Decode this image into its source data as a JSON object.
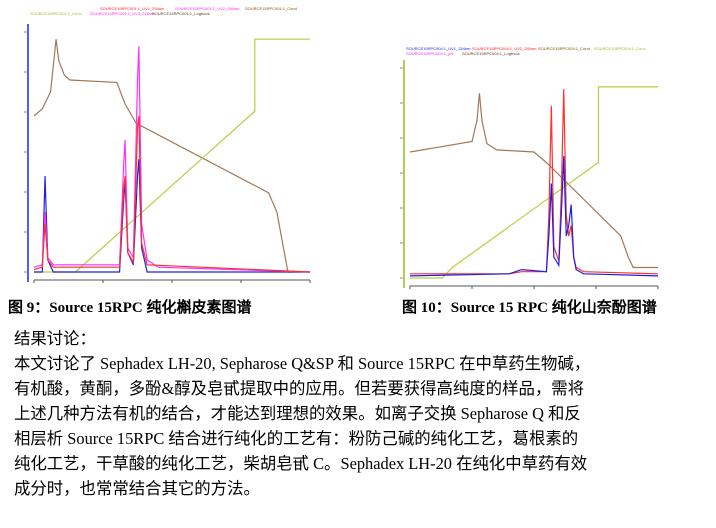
{
  "figure9": {
    "caption": "图 9：Source 15RPC 纯化槲皮素图谱",
    "legend": [
      "SOURCE15RPC001:1_UV1_254nm",
      "SOURCE15RPC001:1_UV2_280nm",
      "SOURCE15RPC001:1_UV3_215nm",
      "SOURCE15RPC001:1_Cond",
      "SOURCE15RPC001:1_Conc",
      "SOURCE15RPC001:1_pH",
      "SOURCE15RPC001:1_Logbook"
    ],
    "chart_data": {
      "type": "line",
      "xlim": [
        0,
        100
      ],
      "ylim": [
        0,
        100
      ],
      "series": [
        {
          "color": "#a07858",
          "x": [
            0,
            3,
            6,
            8,
            9,
            11,
            13,
            30,
            33,
            37,
            85,
            88,
            92,
            100
          ],
          "y": [
            65,
            68,
            75,
            97,
            88,
            82,
            80,
            79,
            70,
            62,
            33,
            25,
            0,
            0
          ]
        },
        {
          "color": "#b0d040",
          "x": [
            0,
            15,
            80,
            80,
            100
          ],
          "y": [
            0,
            0,
            67,
            97,
            97
          ]
        },
        {
          "color": "#2020e0",
          "x": [
            0,
            3,
            4,
            5,
            7,
            31,
            32.5,
            33,
            34,
            36,
            37.5,
            38,
            39,
            41,
            100
          ],
          "y": [
            0,
            0,
            40,
            5,
            0,
            0,
            30,
            38,
            8,
            3,
            40,
            47,
            10,
            0,
            0
          ]
        },
        {
          "color": "#ff30ff",
          "x": [
            0,
            3,
            4,
            5,
            7,
            31,
            32.5,
            33,
            34,
            36,
            37.5,
            38,
            39,
            41,
            45,
            100
          ],
          "y": [
            2,
            3,
            25,
            6,
            3,
            3,
            45,
            55,
            10,
            6,
            80,
            94,
            20,
            5,
            2,
            0
          ]
        },
        {
          "color": "#ff3030",
          "x": [
            0,
            3,
            4,
            5,
            7,
            31,
            32.5,
            33,
            34,
            36,
            37.5,
            38,
            39,
            41,
            100
          ],
          "y": [
            1,
            2,
            20,
            5,
            2,
            2,
            35,
            40,
            8,
            4,
            60,
            65,
            12,
            3,
            0
          ]
        }
      ]
    }
  },
  "figure10": {
    "caption": "图 10：Source 15 RPC 纯化山奈酚图谱",
    "legend": [
      "SOURCE15RPC004:1_UV1_254nm",
      "SOURCE15RPC004:1_UV2_280nm",
      "SOURCE15RPC004:1_Cond",
      "SOURCE15RPC004:1_Conc",
      "SOURCE15RPC004:1_pH",
      "SOURCE15RPC004:1_Logbook"
    ],
    "chart_data": {
      "type": "line",
      "xlim": [
        0,
        100
      ],
      "ylim": [
        0,
        100
      ],
      "series": [
        {
          "color": "#a07858",
          "x": [
            0,
            10,
            25,
            27,
            28,
            29,
            31,
            35,
            50,
            55,
            85,
            88,
            90,
            100
          ],
          "y": [
            60,
            62,
            65,
            75,
            88,
            75,
            64,
            61,
            60,
            55,
            20,
            10,
            5,
            5
          ]
        },
        {
          "color": "#b0d040",
          "x": [
            0,
            13,
            17,
            76,
            76,
            100
          ],
          "y": [
            0,
            0,
            5,
            55,
            91,
            91
          ]
        },
        {
          "color": "#ff3030",
          "x": [
            0,
            40,
            45,
            55,
            56,
            57,
            58,
            60,
            61,
            62,
            63,
            64,
            65,
            66,
            67,
            70,
            100
          ],
          "y": [
            2,
            2,
            3,
            3,
            30,
            82,
            15,
            8,
            40,
            90,
            30,
            20,
            25,
            10,
            5,
            3,
            2
          ]
        },
        {
          "color": "#2020e0",
          "x": [
            0,
            40,
            45,
            55,
            56,
            57,
            58,
            60,
            61,
            62,
            63,
            64,
            65,
            66,
            67,
            70,
            100
          ],
          "y": [
            1,
            2,
            4,
            3,
            20,
            45,
            10,
            6,
            30,
            58,
            20,
            25,
            35,
            10,
            4,
            2,
            1
          ]
        }
      ]
    }
  },
  "text": {
    "heading": "结果讨论：",
    "lines": [
      "本文讨论了 Sephadex LH-20, Sepharose Q&SP 和 Source 15RPC 在中草药生物碱，",
      "有机酸，黄酮，多酚&醇及皂甙提取中的应用。但若要获得高纯度的样品，需将",
      "上述几种方法有机的结合，才能达到理想的效果。如离子交换 Sepharose Q 和反",
      "相层析 Source 15RPC 结合进行纯化的工艺有：粉防己碱的纯化工艺，葛根素的",
      "纯化工艺，干草酸的纯化工艺，柴胡皂甙 C。Sephadex LH-20 在纯化中草药有效",
      "成分时，也常常结合其它的方法。"
    ]
  }
}
